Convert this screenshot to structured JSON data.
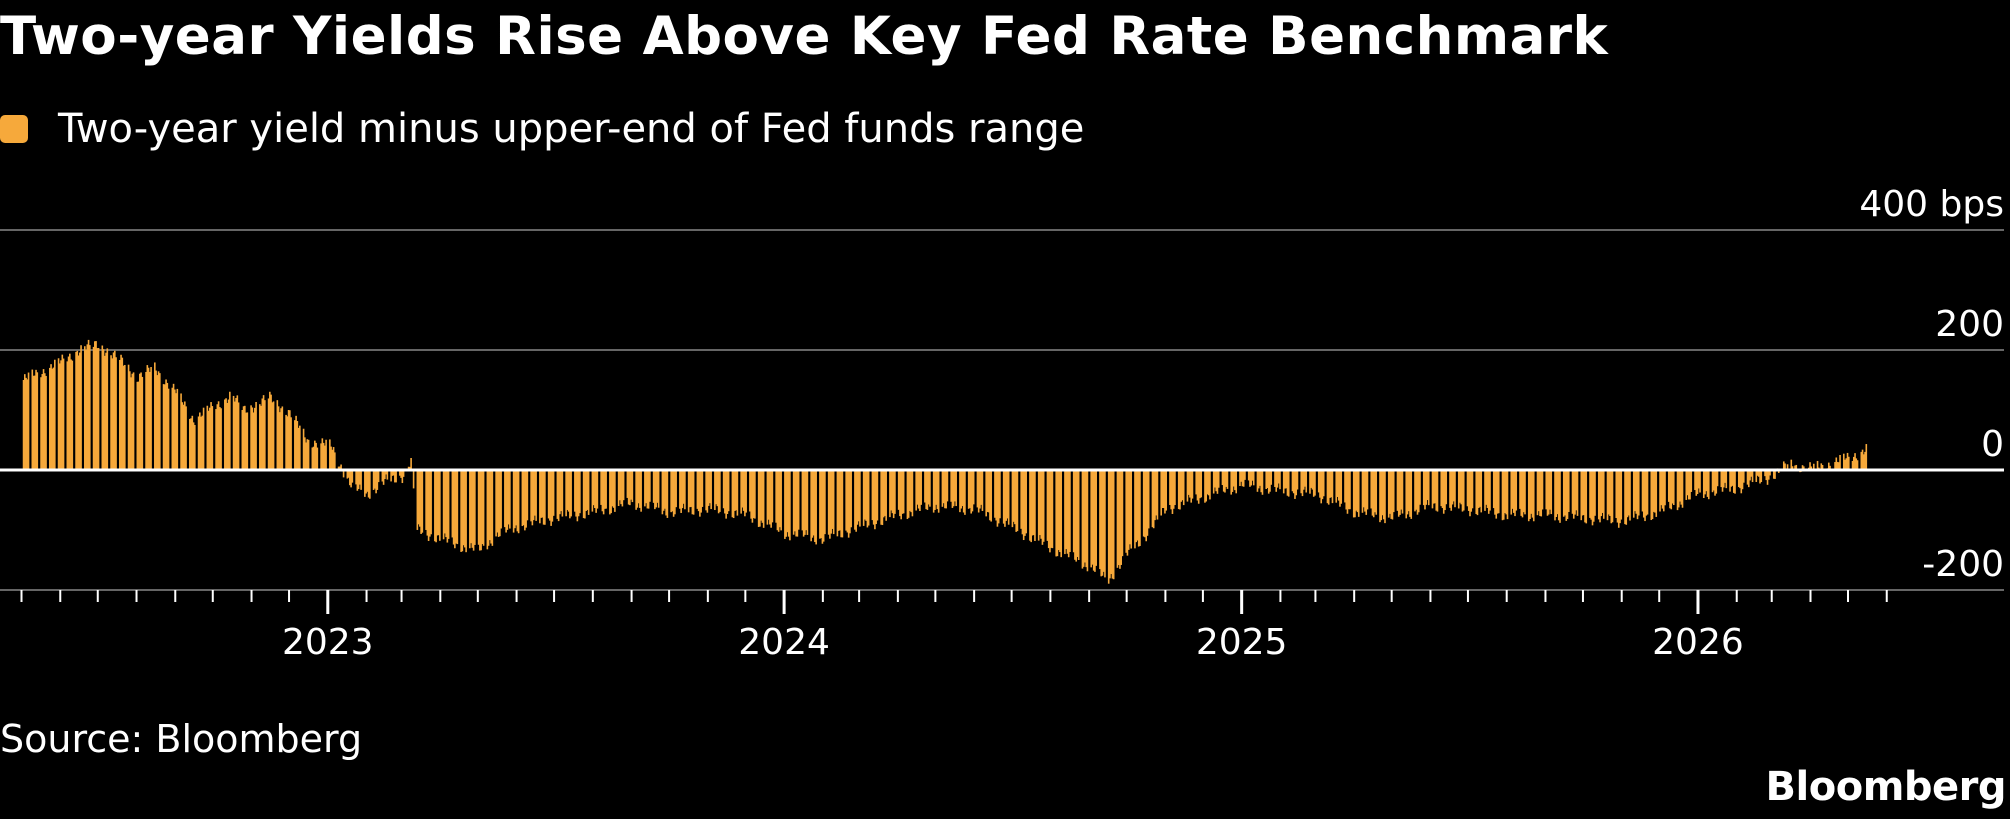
{
  "title": "Two-year Yields Rise Above Key Fed Rate Benchmark",
  "legend": {
    "label": "Two-year yield minus upper-end of Fed funds range",
    "color": "#f6a93b"
  },
  "source": "Source: Bloomberg",
  "brand": "Bloomberg",
  "colors": {
    "bar": "#f6a93b",
    "grid": "#666666",
    "zero_line": "#ffffff",
    "background": "#000000"
  },
  "chart_data": {
    "type": "bar",
    "title": "Two-year Yields Rise Above Key Fed Rate Benchmark",
    "series": [
      {
        "name": "Two-year yield minus upper-end of Fed funds range",
        "x": [
          "2022-05-02",
          "2022-06-01",
          "2022-06-15",
          "2022-07-01",
          "2022-07-20",
          "2022-08-01",
          "2022-08-15",
          "2022-09-01",
          "2022-09-15",
          "2022-10-01",
          "2022-10-15",
          "2022-10-25",
          "2022-11-15",
          "2022-12-01",
          "2022-12-15",
          "2023-01-03",
          "2023-01-20",
          "2023-02-01",
          "2023-02-15",
          "2023-03-01",
          "2023-03-08",
          "2023-03-13",
          "2023-04-01",
          "2023-04-15",
          "2023-05-01",
          "2023-05-15",
          "2023-06-01",
          "2023-07-01",
          "2023-08-01",
          "2023-09-01",
          "2023-10-01",
          "2023-11-01",
          "2023-12-01",
          "2024-01-01",
          "2024-02-01",
          "2024-03-01",
          "2024-04-01",
          "2024-05-01",
          "2024-06-01",
          "2024-07-01",
          "2024-08-01",
          "2024-09-01",
          "2024-09-15",
          "2024-10-01",
          "2024-10-15",
          "2024-11-01",
          "2024-12-01",
          "2025-01-01",
          "2025-02-01",
          "2025-03-01",
          "2025-04-01",
          "2025-05-01",
          "2025-06-01",
          "2025-07-01",
          "2025-08-01",
          "2025-09-01",
          "2025-10-01",
          "2025-11-01",
          "2025-12-01",
          "2026-01-01",
          "2026-02-01",
          "2026-03-01",
          "2026-03-15",
          "2026-04-01",
          "2026-05-01",
          "2026-05-15"
        ],
        "values": [
          150,
          180,
          200,
          210,
          180,
          155,
          170,
          130,
          85,
          105,
          125,
          100,
          120,
          95,
          50,
          40,
          -30,
          -40,
          -20,
          -10,
          15,
          -100,
          -115,
          -125,
          -135,
          -110,
          -95,
          -80,
          -70,
          -55,
          -70,
          -65,
          -75,
          -105,
          -115,
          -95,
          -75,
          -60,
          -65,
          -95,
          -130,
          -160,
          -185,
          -140,
          -110,
          -65,
          -45,
          -25,
          -35,
          -40,
          -70,
          -80,
          -60,
          -65,
          -75,
          -75,
          -80,
          -85,
          -70,
          -40,
          -30,
          -10,
          10,
          2,
          20,
          35
        ]
      }
    ],
    "yunit": "bps",
    "yticks": [
      400,
      200,
      0,
      -200
    ],
    "ytick_labels": [
      "400 bps",
      "200",
      "0",
      "-200"
    ],
    "ylim": [
      -200,
      400
    ],
    "xtick_labels": [
      "2023",
      "2024",
      "2025",
      "2026"
    ],
    "xlim": [
      "2022-04-25",
      "2026-06-10"
    ],
    "grid": true
  }
}
